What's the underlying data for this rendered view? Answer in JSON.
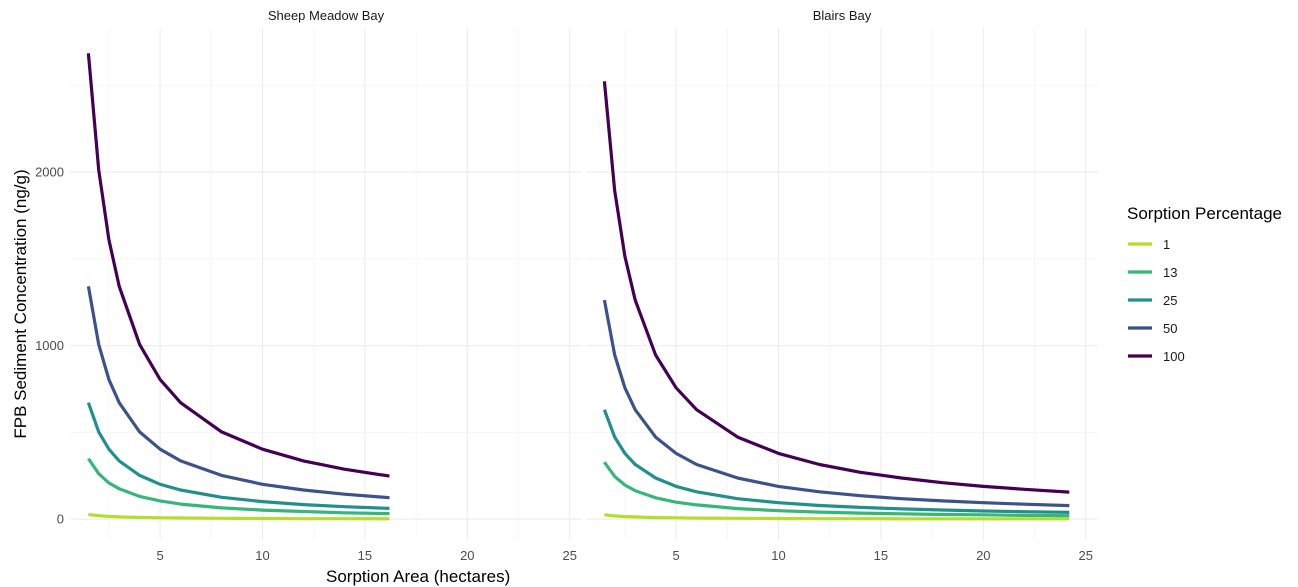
{
  "chart_data": {
    "type": "line",
    "xlabel": "Sorption Area (hectares)",
    "ylabel": "FPB Sediment Concentration (ng/g)",
    "xlim": [
      0.6,
      25.6
    ],
    "ylim": [
      -120,
      2830
    ],
    "x_ticks": [
      "5",
      "10",
      "15",
      "20",
      "25"
    ],
    "y_ticks": [
      "0",
      "1000",
      "2000"
    ],
    "legend": {
      "title": "Sorption Percentage",
      "position": "right"
    },
    "grid": true,
    "series_styles": [
      {
        "name": "1",
        "color": "#b5de2b"
      },
      {
        "name": "13",
        "color": "#35b779"
      },
      {
        "name": "25",
        "color": "#21908c"
      },
      {
        "name": "50",
        "color": "#3b528b"
      },
      {
        "name": "100",
        "color": "#440154"
      }
    ],
    "panels": [
      {
        "title": "Sheep Meadow Bay",
        "x": [
          1.5,
          2,
          2.5,
          3,
          4,
          5,
          6,
          8,
          10,
          12,
          14,
          16.2
        ],
        "series": [
          {
            "name": "1",
            "values": [
              27,
              20,
              16,
              13,
              10,
              8,
              7,
              5,
              4,
              3,
              3,
              2
            ]
          },
          {
            "name": "13",
            "values": [
              349,
              262,
              209,
              175,
              131,
              105,
              87,
              65,
              52,
              44,
              37,
              32
            ]
          },
          {
            "name": "25",
            "values": [
              671,
              503,
              403,
              336,
              252,
              201,
              168,
              126,
              101,
              84,
              72,
              62
            ]
          },
          {
            "name": "50",
            "values": [
              1342,
              1007,
              805,
              671,
              503,
              403,
              336,
              252,
              201,
              168,
              144,
              124
            ]
          },
          {
            "name": "100",
            "values": [
              2684,
              2013,
              1610,
              1342,
              1007,
              805,
              671,
              503,
              403,
              336,
              288,
              248
            ]
          }
        ]
      },
      {
        "title": "Blairs Bay",
        "x": [
          1.5,
          2,
          2.5,
          3,
          4,
          5,
          6,
          8,
          10,
          12,
          14,
          16,
          18,
          20,
          22,
          24.2
        ],
        "series": [
          {
            "name": "1",
            "values": [
              25,
              19,
              15,
              13,
              9,
              8,
              6,
              5,
              4,
              3,
              3,
              2,
              2,
              2,
              2,
              2
            ]
          },
          {
            "name": "13",
            "values": [
              328,
              246,
              197,
              164,
              123,
              98,
              82,
              61,
              49,
              41,
              35,
              31,
              27,
              25,
              22,
              20
            ]
          },
          {
            "name": "25",
            "values": [
              631,
              473,
              379,
              315,
              237,
              189,
              158,
              118,
              95,
              79,
              68,
              59,
              53,
              47,
              43,
              39
            ]
          },
          {
            "name": "50",
            "values": [
              1262,
              946,
              757,
              631,
              473,
              379,
              315,
              237,
              189,
              158,
              135,
              118,
              105,
              95,
              86,
              78
            ]
          },
          {
            "name": "100",
            "values": [
              2523,
              1892,
              1514,
              1262,
              946,
              757,
              631,
              473,
              379,
              315,
              270,
              237,
              210,
              189,
              172,
              156
            ]
          }
        ]
      }
    ]
  }
}
